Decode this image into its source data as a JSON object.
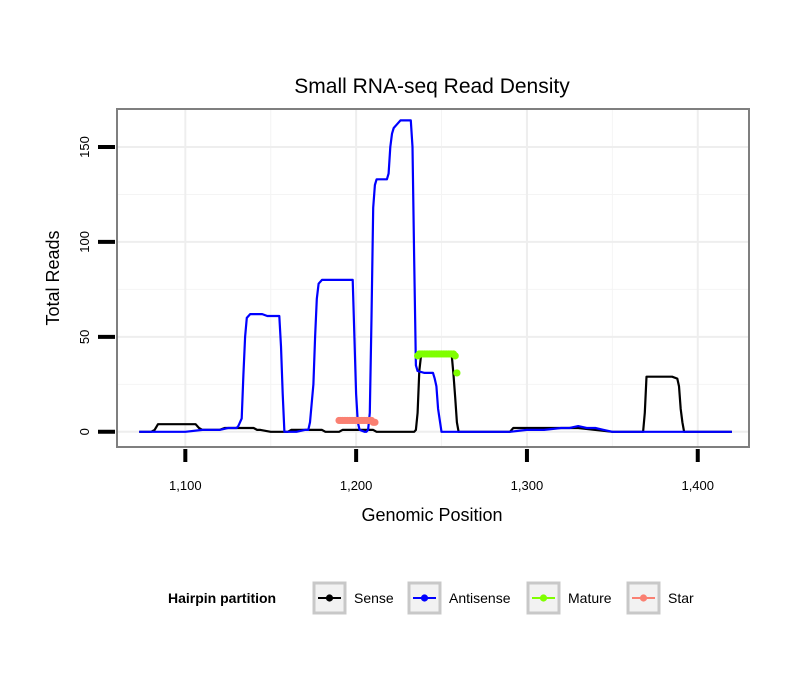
{
  "chart_data": {
    "type": "line",
    "title": "Small RNA-seq Read Density",
    "xlabel": "Genomic Position",
    "ylabel": "Total Reads",
    "xlim": [
      1060,
      1430
    ],
    "ylim": [
      -8,
      170
    ],
    "x_ticks": [
      1100,
      1200,
      1300,
      1400
    ],
    "x_tick_labels": [
      "1,100",
      "1,200",
      "1,300",
      "1,400"
    ],
    "y_ticks": [
      0,
      50,
      100,
      150
    ],
    "y_tick_labels": [
      "0",
      "50",
      "100",
      "150"
    ],
    "grid": true,
    "legend": {
      "title": "Hairpin partition",
      "position": "bottom",
      "entries": [
        {
          "label": "Sense",
          "color": "#000000"
        },
        {
          "label": "Antisense",
          "color": "#0000ff"
        },
        {
          "label": "Mature",
          "color": "#7fff00"
        },
        {
          "label": "Star",
          "color": "#fa8072"
        }
      ]
    },
    "series": [
      {
        "name": "Sense",
        "color": "#000000",
        "style": "line",
        "x": [
          1073,
          1080,
          1082,
          1084,
          1090,
          1095,
          1106,
          1108,
          1110,
          1120,
          1123,
          1125,
          1140,
          1142,
          1144,
          1150,
          1155,
          1160,
          1162,
          1164,
          1170,
          1172,
          1175,
          1180,
          1182,
          1185,
          1190,
          1192,
          1195,
          1200,
          1205,
          1210,
          1212,
          1215,
          1220,
          1225,
          1230,
          1234,
          1235,
          1236,
          1237,
          1238,
          1240,
          1250,
          1255,
          1256,
          1257,
          1258,
          1259,
          1260,
          1262,
          1270,
          1280,
          1290,
          1292,
          1294,
          1300,
          1310,
          1320,
          1330,
          1340,
          1350,
          1360,
          1368,
          1369,
          1370,
          1380,
          1385,
          1388,
          1389,
          1390,
          1391,
          1392,
          1395,
          1400,
          1410,
          1420
        ],
        "y": [
          0,
          0,
          1,
          4,
          4,
          4,
          4,
          2,
          1,
          1,
          2,
          2,
          2,
          1,
          1,
          0,
          0,
          0,
          1,
          1,
          1,
          1,
          1,
          1,
          0,
          0,
          0,
          1,
          1,
          1,
          1,
          1,
          0,
          0,
          0,
          0,
          0,
          0,
          1,
          10,
          32,
          40,
          41,
          41,
          41,
          40,
          30,
          18,
          5,
          0,
          0,
          0,
          0,
          0,
          2,
          2,
          2,
          2,
          2,
          2,
          1,
          0,
          0,
          0,
          10,
          29,
          29,
          29,
          28,
          24,
          12,
          5,
          0,
          0,
          0,
          0,
          0
        ]
      },
      {
        "name": "Antisense",
        "color": "#0000ff",
        "style": "line",
        "x": [
          1073,
          1080,
          1090,
          1100,
          1110,
          1120,
          1125,
          1128,
          1130,
          1131,
          1132,
          1133,
          1134,
          1135,
          1136,
          1138,
          1140,
          1145,
          1148,
          1150,
          1155,
          1156,
          1157,
          1158,
          1159,
          1160,
          1165,
          1170,
          1172,
          1173,
          1174,
          1175,
          1176,
          1177,
          1178,
          1180,
          1185,
          1190,
          1195,
          1198,
          1199,
          1200,
          1201,
          1202,
          1205,
          1206,
          1207,
          1208,
          1209,
          1210,
          1211,
          1212,
          1215,
          1218,
          1219,
          1220,
          1221,
          1222,
          1224,
          1226,
          1230,
          1231,
          1232,
          1233,
          1234,
          1235,
          1236,
          1240,
          1245,
          1246,
          1247,
          1248,
          1250,
          1260,
          1270,
          1280,
          1290,
          1300,
          1310,
          1320,
          1325,
          1330,
          1335,
          1340,
          1345,
          1350,
          1360,
          1370,
          1380,
          1390,
          1400,
          1410,
          1420
        ],
        "y": [
          0,
          0,
          0,
          0,
          1,
          1,
          2,
          2,
          2,
          3,
          5,
          7,
          30,
          50,
          60,
          62,
          62,
          62,
          61,
          61,
          61,
          45,
          20,
          0,
          0,
          0,
          0,
          1,
          1,
          5,
          15,
          25,
          50,
          70,
          78,
          80,
          80,
          80,
          80,
          80,
          50,
          20,
          5,
          1,
          0,
          0,
          1,
          10,
          60,
          118,
          130,
          133,
          133,
          133,
          136,
          150,
          157,
          160,
          162,
          164,
          164,
          164,
          164,
          150,
          90,
          35,
          32,
          31,
          31,
          28,
          24,
          12,
          0,
          0,
          0,
          0,
          0,
          1,
          1,
          2,
          2,
          3,
          2,
          2,
          1,
          0,
          0,
          0,
          0,
          0,
          0,
          0,
          0
        ]
      },
      {
        "name": "Mature",
        "color": "#7fff00",
        "style": "points",
        "x": [
          1236,
          1237,
          1238,
          1239,
          1240,
          1241,
          1242,
          1243,
          1244,
          1245,
          1246,
          1247,
          1248,
          1249,
          1250,
          1251,
          1252,
          1253,
          1254,
          1255,
          1256,
          1257,
          1258,
          1259
        ],
        "y": [
          40,
          41,
          41,
          41,
          41,
          41,
          41,
          41,
          41,
          41,
          41,
          41,
          41,
          41,
          41,
          41,
          41,
          41,
          41,
          41,
          41,
          41,
          40,
          31
        ]
      },
      {
        "name": "Star",
        "color": "#fa8072",
        "style": "points",
        "x": [
          1190,
          1191,
          1192,
          1193,
          1194,
          1195,
          1196,
          1197,
          1198,
          1199,
          1200,
          1201,
          1202,
          1203,
          1204,
          1205,
          1206,
          1207,
          1208,
          1209,
          1210,
          1211
        ],
        "y": [
          6,
          6,
          6,
          6,
          6,
          6,
          6,
          6,
          6,
          6,
          6,
          6,
          6,
          6,
          6,
          6,
          6,
          6,
          6,
          6,
          5,
          5
        ]
      }
    ]
  }
}
